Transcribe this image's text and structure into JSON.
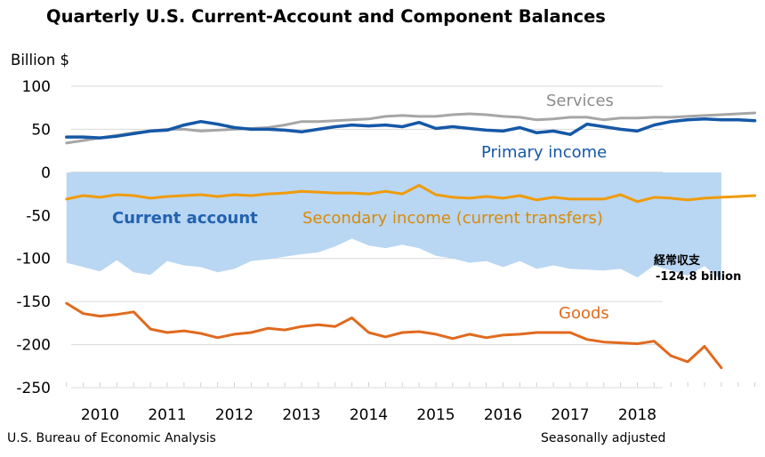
{
  "chart_data": {
    "type": "line",
    "title": "Quarterly U.S. Current-Account and Component Balances",
    "ylabel": "Billion $",
    "xlabel": "",
    "ylim": [
      -250,
      100
    ],
    "yticks": [
      100,
      50,
      0,
      -50,
      -100,
      -150,
      -200,
      -250
    ],
    "x_start": 2009.5,
    "x_step": 0.25,
    "year_labels": [
      "2010",
      "2011",
      "2012",
      "2013",
      "2014",
      "2015",
      "2016",
      "2017",
      "2018"
    ],
    "series": [
      {
        "name": "Services",
        "label": "Services",
        "color": "#a6a6a6",
        "values": [
          34,
          37,
          40,
          43,
          46,
          48,
          50,
          50,
          48,
          49,
          50,
          51,
          52,
          55,
          59,
          59,
          60,
          61,
          62,
          65,
          66,
          65,
          65,
          67,
          68,
          67,
          65,
          64,
          61,
          62,
          64,
          64,
          61,
          63,
          63,
          64,
          64,
          65,
          66,
          67,
          68,
          69
        ]
      },
      {
        "name": "Primary income",
        "label": "Primary income",
        "color": "#1558a7",
        "values": [
          41,
          41,
          40,
          42,
          45,
          48,
          49,
          55,
          59,
          56,
          52,
          50,
          50,
          49,
          47,
          50,
          53,
          55,
          54,
          55,
          53,
          58,
          51,
          53,
          51,
          49,
          48,
          52,
          46,
          48,
          44,
          56,
          53,
          50,
          48,
          55,
          59,
          61,
          62,
          61,
          61,
          60
        ]
      },
      {
        "name": "Secondary income (current transfers)",
        "label": "Secondary income (current transfers)",
        "color": "#f09b0a",
        "values": [
          -31,
          -27,
          -29,
          -26,
          -27,
          -30,
          -28,
          -27,
          -26,
          -28,
          -26,
          -27,
          -25,
          -24,
          -22,
          -23,
          -24,
          -24,
          -25,
          -22,
          -25,
          -15,
          -26,
          -29,
          -30,
          -28,
          -30,
          -27,
          -32,
          -29,
          -31,
          -31,
          -31,
          -26,
          -34,
          -29,
          -30,
          -32,
          -30,
          -29,
          -28,
          -27
        ]
      },
      {
        "name": "Goods",
        "label": "Goods",
        "color": "#e06a1f",
        "values": [
          -152,
          -164,
          -167,
          -165,
          -162,
          -182,
          -186,
          -184,
          -187,
          -192,
          -188,
          -186,
          -181,
          -183,
          -179,
          -177,
          -179,
          -169,
          -186,
          -191,
          -186,
          -185,
          -188,
          -193,
          -188,
          -192,
          -189,
          -188,
          -186,
          -186,
          -186,
          -194,
          -197,
          -198,
          -199,
          -196,
          -213,
          -220,
          -202,
          -227
        ]
      },
      {
        "name": "Current account",
        "label": "Current account",
        "color": "#b9d6f2",
        "values": [
          -105,
          -110,
          -115,
          -102,
          -116,
          -119,
          -103,
          -108,
          -110,
          -116,
          -112,
          -103,
          -101,
          -98,
          -95,
          -93,
          -86,
          -77,
          -85,
          -88,
          -84,
          -88,
          -97,
          -100,
          -105,
          -103,
          -110,
          -103,
          -112,
          -108,
          -112,
          -113,
          -114,
          -112,
          -122,
          -108,
          -114,
          -120,
          -109,
          -125
        ]
      }
    ],
    "annotation": {
      "series": "Current account",
      "line1": "経常収支",
      "line2": "-124.8 billion",
      "value": -124.8
    }
  },
  "footer": {
    "source": "U.S. Bureau of Economic Analysis",
    "note": "Seasonally adjusted"
  }
}
